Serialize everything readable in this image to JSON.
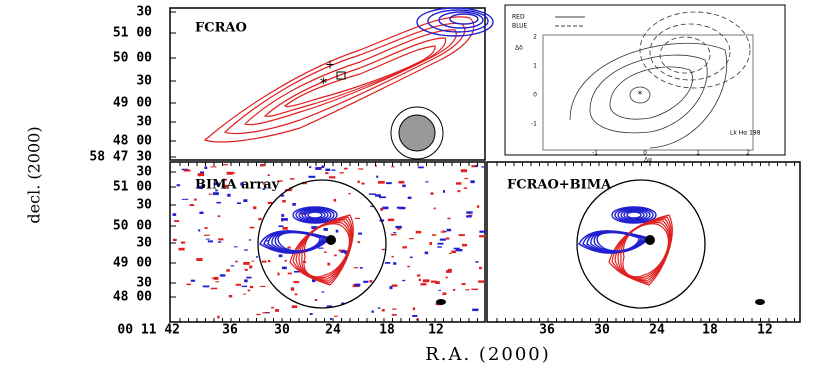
{
  "axes": {
    "y_label": "decl. (2000)",
    "x_label": "R.A. (2000)"
  },
  "panels": [
    {
      "label": "FCRAO",
      "yticks": [
        "30",
        "51 00",
        "50 00",
        "30",
        "49 00",
        "30",
        "48 00",
        "58 47 30"
      ]
    },
    {
      "label": "BIMA array",
      "yticks": [
        "30",
        "51 00",
        "30",
        "50 00",
        "30",
        "49 00",
        "30",
        "48 00"
      ],
      "xticks": [
        "00 11 42",
        "36",
        "30",
        "24",
        "18",
        "12"
      ]
    },
    {
      "label": "FCRAO+BIMA",
      "xticks": [
        "36",
        "30",
        "24",
        "18",
        "12"
      ]
    }
  ],
  "inset": {
    "legend": [
      "RED",
      "BLUE"
    ],
    "source": "Lk Hα 198",
    "x_label": "Δα",
    "y_label": "Δδ",
    "yticks": [
      "2",
      "1",
      "0",
      "-1"
    ],
    "xticks": [
      "-1",
      "0",
      "1",
      "2"
    ]
  }
}
